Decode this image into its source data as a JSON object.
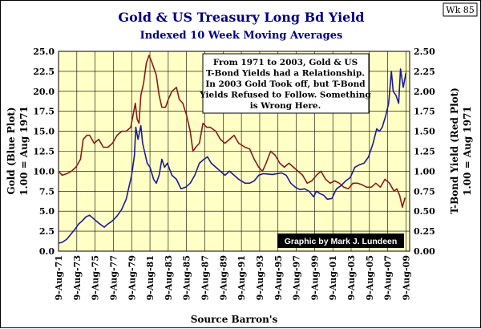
{
  "chart_data": {
    "type": "line",
    "title": "Gold & US Treasury Long Bd Yield",
    "subtitle": "Indexed 10 Week Moving Averages",
    "badge": "Wk 85",
    "y_left_label_1": "Gold (Blue Plot)",
    "y_left_label_2": "1.00 = Aug 1971",
    "y_right_label_1": "T-Bond Yield (Red Plot)",
    "y_right_label_2": "1.00 = Aug 1971",
    "xlabel": "Source Barron's",
    "x_range": [
      1971.6,
      2010.0
    ],
    "y_left_range": [
      0,
      25
    ],
    "y_right_range": [
      0,
      2.5
    ],
    "y_left_ticks": [
      "0.0",
      "2.5",
      "5.0",
      "7.5",
      "10.0",
      "12.5",
      "15.0",
      "17.5",
      "20.0",
      "22.5",
      "25.0"
    ],
    "y_right_ticks": [
      "0.00",
      "0.25",
      "0.50",
      "0.75",
      "1.00",
      "1.25",
      "1.50",
      "1.75",
      "2.00",
      "2.25",
      "2.50"
    ],
    "x_tick_labels": [
      "9-Aug-71",
      "9-Aug-73",
      "9-Aug-75",
      "9-Aug-77",
      "9-Aug-79",
      "9-Aug-81",
      "9-Aug-83",
      "9-Aug-85",
      "9-Aug-87",
      "9-Aug-89",
      "9-Aug-91",
      "9-Aug-93",
      "9-Aug-95",
      "9-Aug-97",
      "9-Aug-99",
      "9-Aug-01",
      "9-Aug-03",
      "9-Aug-05",
      "9-Aug-07",
      "9-Aug-09"
    ],
    "annotation_lines": [
      "From 1971 to 2003, Gold & US",
      "T-Bond Yields had a Relationship.",
      "In 2003 Gold Took off, but T-Bond",
      "Yields Refused to Follow.  Something",
      "is Wrong Here."
    ],
    "credit": "Graphic by Mark J. Lundeen",
    "series": [
      {
        "name": "Gold (Blue Plot)",
        "axis": "left",
        "color": "#1a1a9a",
        "x": [
          1971.6,
          1972.0,
          1972.5,
          1973.0,
          1973.5,
          1973.8,
          1974.2,
          1974.6,
          1975.0,
          1975.5,
          1976.0,
          1976.6,
          1977.0,
          1977.5,
          1978.0,
          1978.5,
          1979.0,
          1979.3,
          1979.6,
          1979.9,
          1980.05,
          1980.3,
          1980.6,
          1980.8,
          1981.0,
          1981.3,
          1981.6,
          1982.0,
          1982.3,
          1982.6,
          1982.9,
          1983.2,
          1983.5,
          1984.0,
          1984.5,
          1985.0,
          1985.5,
          1986.0,
          1986.5,
          1987.0,
          1987.5,
          1987.9,
          1988.3,
          1988.8,
          1989.3,
          1989.8,
          1990.3,
          1990.8,
          1991.3,
          1992.0,
          1992.5,
          1993.0,
          1993.5,
          1994.0,
          1995.0,
          1996.0,
          1996.5,
          1997.0,
          1997.5,
          1998.0,
          1998.5,
          1999.0,
          1999.5,
          1999.8,
          2000.2,
          2000.6,
          2001.0,
          2001.5,
          2002.0,
          2002.5,
          2003.0,
          2003.5,
          2004.0,
          2004.5,
          2005.0,
          2005.5,
          2006.0,
          2006.4,
          2006.7,
          2007.0,
          2007.4,
          2007.7,
          2008.0,
          2008.2,
          2008.5,
          2008.8,
          2009.0,
          2009.3,
          2009.6
        ],
        "y": [
          1.0,
          1.1,
          1.5,
          2.2,
          2.9,
          3.4,
          3.8,
          4.3,
          4.5,
          4.0,
          3.5,
          3.0,
          3.4,
          3.8,
          4.4,
          5.2,
          6.5,
          8.0,
          9.5,
          12.0,
          15.5,
          14.0,
          15.7,
          13.5,
          12.5,
          11.0,
          10.5,
          9.0,
          8.5,
          9.5,
          11.5,
          10.5,
          11.0,
          9.5,
          9.0,
          7.8,
          8.0,
          8.5,
          9.5,
          11.0,
          11.5,
          11.8,
          11.0,
          10.5,
          10.0,
          9.5,
          10.0,
          9.5,
          9.0,
          8.5,
          8.5,
          8.8,
          9.5,
          9.7,
          9.6,
          9.8,
          9.5,
          8.5,
          8.0,
          7.7,
          7.8,
          7.5,
          6.8,
          7.5,
          7.2,
          7.0,
          6.5,
          6.6,
          7.8,
          8.2,
          8.8,
          9.2,
          10.5,
          10.8,
          11.0,
          11.8,
          13.5,
          15.3,
          15.0,
          15.5,
          17.0,
          18.5,
          22.5,
          20.0,
          19.5,
          18.5,
          22.8,
          20.5,
          22.3
        ]
      },
      {
        "name": "T-Bond Yield (Red Plot)",
        "axis": "right",
        "color": "#8b1a1a",
        "x": [
          1971.6,
          1972.0,
          1972.5,
          1973.0,
          1973.5,
          1974.0,
          1974.3,
          1974.7,
          1975.0,
          1975.5,
          1976.0,
          1976.5,
          1977.0,
          1977.5,
          1978.0,
          1978.5,
          1979.0,
          1979.5,
          1980.0,
          1980.2,
          1980.4,
          1980.6,
          1980.9,
          1981.2,
          1981.5,
          1981.75,
          1982.0,
          1982.3,
          1982.6,
          1982.9,
          1983.3,
          1983.6,
          1984.0,
          1984.5,
          1984.8,
          1985.2,
          1985.6,
          1986.0,
          1986.3,
          1986.6,
          1987.0,
          1987.4,
          1987.8,
          1988.2,
          1988.8,
          1989.3,
          1989.8,
          1990.3,
          1990.8,
          1991.3,
          1992.0,
          1992.5,
          1993.0,
          1993.5,
          1993.9,
          1994.3,
          1994.8,
          1995.3,
          1995.8,
          1996.3,
          1996.8,
          1997.3,
          1997.8,
          1998.3,
          1998.8,
          1999.3,
          1999.8,
          2000.3,
          2000.8,
          2001.3,
          2001.8,
          2002.3,
          2002.8,
          2003.3,
          2003.8,
          2004.3,
          2004.8,
          2005.3,
          2005.8,
          2006.3,
          2006.8,
          2007.3,
          2007.8,
          2008.3,
          2008.6,
          2008.9,
          2009.2,
          2009.5
        ],
        "y": [
          1.0,
          0.95,
          0.97,
          1.0,
          1.05,
          1.15,
          1.4,
          1.45,
          1.45,
          1.35,
          1.4,
          1.3,
          1.3,
          1.35,
          1.45,
          1.5,
          1.5,
          1.55,
          1.85,
          1.65,
          1.6,
          1.95,
          2.1,
          2.35,
          2.45,
          2.38,
          2.3,
          2.2,
          1.95,
          1.8,
          1.8,
          1.9,
          2.0,
          2.05,
          1.9,
          1.85,
          1.7,
          1.5,
          1.25,
          1.3,
          1.35,
          1.6,
          1.55,
          1.55,
          1.5,
          1.4,
          1.35,
          1.4,
          1.45,
          1.35,
          1.3,
          1.28,
          1.15,
          1.05,
          1.0,
          1.1,
          1.25,
          1.2,
          1.1,
          1.05,
          1.1,
          1.05,
          1.0,
          0.95,
          0.85,
          0.88,
          0.95,
          1.0,
          0.9,
          0.85,
          0.88,
          0.85,
          0.8,
          0.78,
          0.85,
          0.85,
          0.83,
          0.8,
          0.8,
          0.85,
          0.8,
          0.9,
          0.85,
          0.75,
          0.78,
          0.7,
          0.55,
          0.67
        ]
      }
    ]
  }
}
